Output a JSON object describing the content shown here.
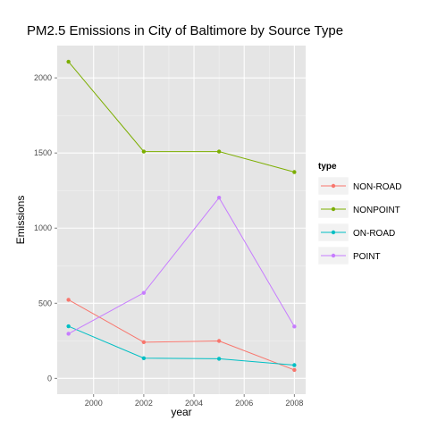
{
  "chart_data": {
    "type": "line",
    "title": "PM2.5 Emissions in City of Baltimore by Source Type",
    "xlabel": "year",
    "ylabel": "Emissions",
    "x": [
      1999,
      2002,
      2005,
      2008
    ],
    "xlim": [
      1998.55,
      2008.45
    ],
    "ylim": [
      -105,
      2215
    ],
    "x_ticks": [
      2000,
      2002,
      2004,
      2006,
      2008
    ],
    "y_ticks": [
      0,
      500,
      1000,
      1500,
      2000
    ],
    "grid": true,
    "legend_title": "type",
    "legend_position": "right",
    "series": [
      {
        "name": "NON-ROAD",
        "color": "#f8766d",
        "values": [
          522.94,
          240.85,
          248.93,
          55.82
        ]
      },
      {
        "name": "NONPOINT",
        "color": "#7cae00",
        "values": [
          2107.63,
          1509.5,
          1509.5,
          1373.21
        ]
      },
      {
        "name": "ON-ROAD",
        "color": "#00bfc4",
        "values": [
          346.82,
          134.31,
          130.43,
          88.28
        ]
      },
      {
        "name": "POINT",
        "color": "#c77cff",
        "values": [
          296.8,
          569.26,
          1202.49,
          344.98
        ]
      }
    ]
  }
}
